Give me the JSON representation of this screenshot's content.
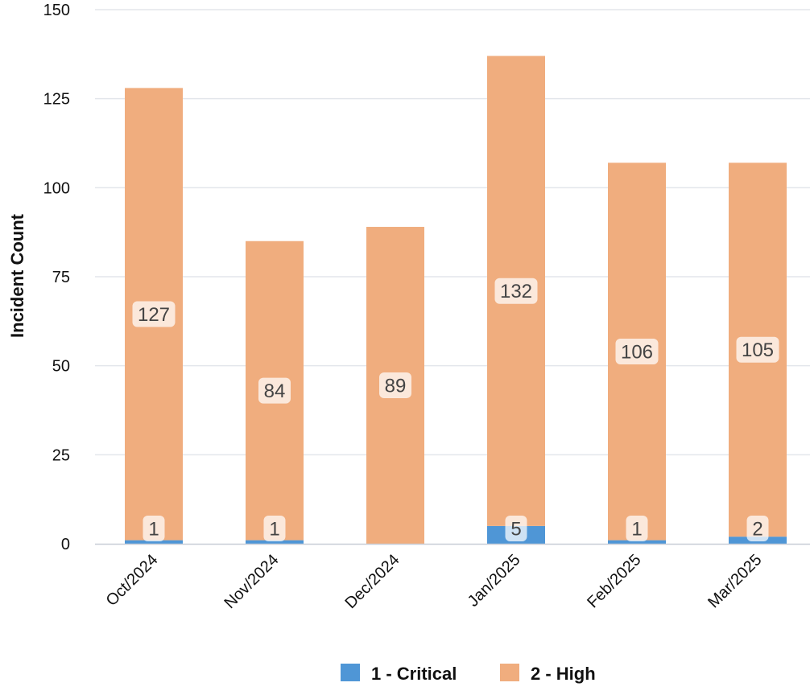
{
  "chart_data": {
    "type": "bar",
    "stacked": true,
    "title": "",
    "xlabel": "",
    "ylabel": "Incident Count",
    "ylim": [
      0,
      150
    ],
    "yticks": [
      0,
      25,
      50,
      75,
      100,
      125,
      150
    ],
    "grid": true,
    "legend_position": "bottom",
    "categories": [
      "Oct/2024",
      "Nov/2024",
      "Dec/2024",
      "Jan/2025",
      "Feb/2025",
      "Mar/2025"
    ],
    "series": [
      {
        "name": "1 - Critical",
        "color": "#4f96d6",
        "values": [
          1,
          1,
          0,
          5,
          1,
          2
        ]
      },
      {
        "name": "2 - High",
        "color": "#f0ad7e",
        "values": [
          127,
          84,
          89,
          132,
          106,
          105
        ]
      }
    ]
  }
}
